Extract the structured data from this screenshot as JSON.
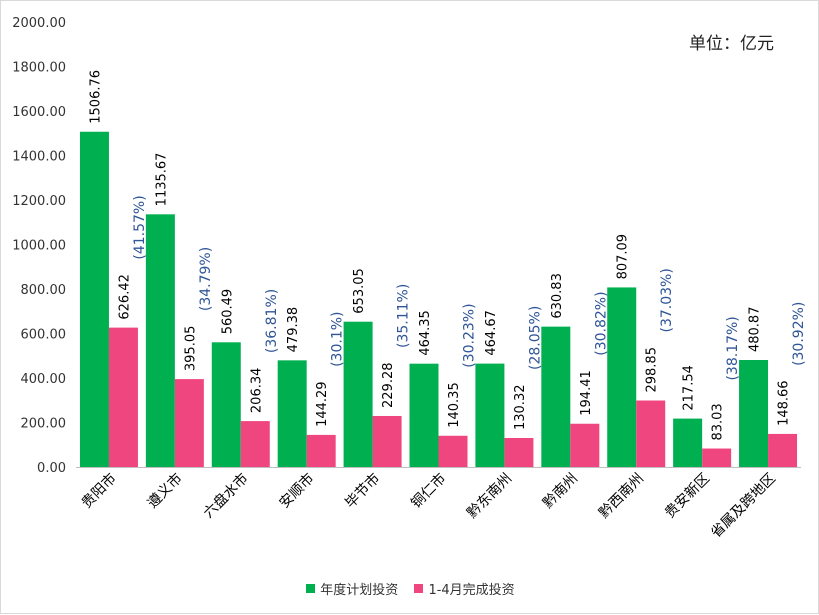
{
  "unit_label": "单位：亿元",
  "chart_data": {
    "type": "bar",
    "title": "",
    "xlabel": "",
    "ylabel": "",
    "ylim": [
      0,
      2000
    ],
    "yticks": [
      "0.00",
      "200.00",
      "400.00",
      "600.00",
      "800.00",
      "1000.00",
      "1200.00",
      "1400.00",
      "1600.00",
      "1800.00",
      "2000.00"
    ],
    "categories": [
      "贵阳市",
      "遵义市",
      "六盘水市",
      "安顺市",
      "毕节市",
      "铜仁市",
      "黔东南州",
      "黔南州",
      "黔西南州",
      "贵安新区",
      "省属及跨地区"
    ],
    "series": [
      {
        "name": "年度计划投资",
        "color": "#00b050",
        "values": [
          1506.76,
          1135.67,
          560.49,
          479.38,
          653.05,
          464.35,
          464.67,
          630.83,
          807.09,
          217.54,
          480.87
        ],
        "labels": [
          "1506.76",
          "1135.67",
          "560.49",
          "479.38",
          "653.05",
          "464.35",
          "464.67",
          "630.83",
          "807.09",
          "217.54",
          "480.87"
        ]
      },
      {
        "name": "1-4月完成投资",
        "color": "#f0467f",
        "values": [
          626.42,
          395.05,
          206.34,
          144.29,
          229.28,
          140.35,
          130.32,
          194.41,
          298.85,
          83.03,
          148.66
        ],
        "labels": [
          "626.42",
          "395.05",
          "206.34",
          "144.29",
          "229.28",
          "140.35",
          "130.32",
          "194.41",
          "298.85",
          "83.03",
          "148.66"
        ]
      }
    ],
    "percent_labels": [
      "(41.57%)",
      "(34.79%)",
      "(36.81%)",
      "(30.1%)",
      "(35.11%)",
      "(30.23%)",
      "(28.05%)",
      "(30.82%)",
      "(37.03%)",
      "(38.17%)",
      "(30.92%)"
    ],
    "percent_color": "#2f5597",
    "grid": false,
    "legend": "bottom"
  }
}
